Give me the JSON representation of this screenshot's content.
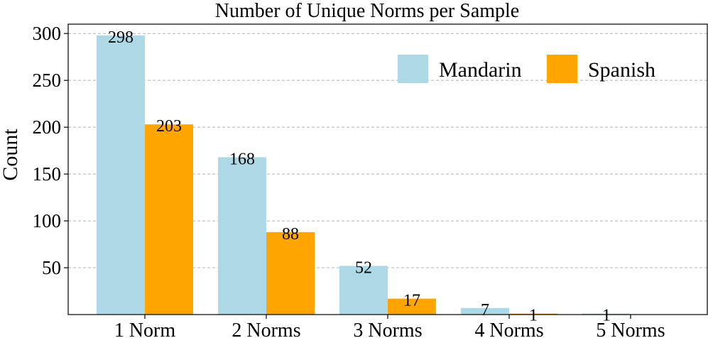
{
  "chart_data": {
    "type": "bar",
    "title": "Number of Unique Norms per Sample",
    "xlabel": "",
    "ylabel": "Count",
    "categories": [
      "1 Norm",
      "2 Norms",
      "3 Norms",
      "4 Norms",
      "5 Norms"
    ],
    "series": [
      {
        "name": "Mandarin",
        "color": "#add8e6",
        "values": [
          298,
          168,
          52,
          7,
          1
        ]
      },
      {
        "name": "Spanish",
        "color": "#ffa500",
        "values": [
          203,
          88,
          17,
          1,
          0
        ]
      }
    ],
    "data_labels": [
      [
        "298",
        "168",
        "52",
        "7",
        "1"
      ],
      [
        "203",
        "88",
        "17",
        "1",
        ""
      ]
    ],
    "yticks": [
      50,
      100,
      150,
      200,
      250,
      300
    ],
    "ylim": [
      0,
      310
    ],
    "grid": true,
    "legend_position": "top-right"
  }
}
